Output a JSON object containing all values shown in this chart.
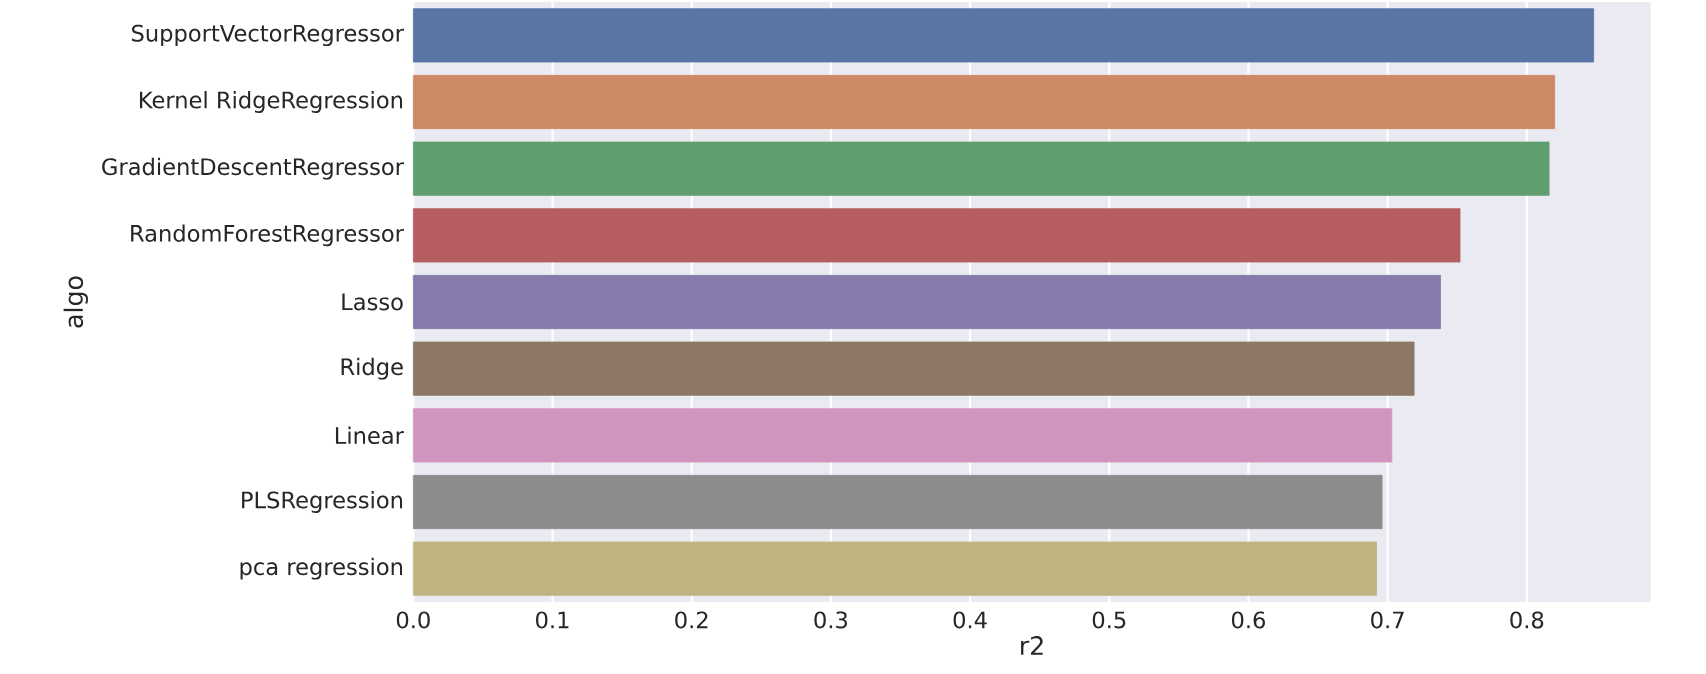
{
  "chart_data": {
    "type": "bar",
    "orientation": "horizontal",
    "xlabel": "r2",
    "ylabel": "algo",
    "categories": [
      "SupportVectorRegressor",
      "Kernel RidgeRegression",
      "GradientDescentRegressor",
      "RandomForestRegressor",
      "Lasso",
      "Ridge",
      "Linear",
      "PLSRegression",
      "pca regression"
    ],
    "values": [
      0.848,
      0.82,
      0.816,
      0.752,
      0.738,
      0.719,
      0.703,
      0.696,
      0.692
    ],
    "colors": [
      "#5875a4",
      "#cc8963",
      "#5f9e6e",
      "#b55d60",
      "#857aab",
      "#8d7866",
      "#d095bf",
      "#8c8c8c",
      "#c1b37f"
    ],
    "xlim": [
      0,
      0.889
    ],
    "xticks": [
      {
        "value": 0,
        "label": "0.0"
      },
      0.1,
      0.2,
      0.3,
      0.4,
      0.5,
      0.6,
      0.7,
      0.8
    ],
    "grid": "x"
  }
}
